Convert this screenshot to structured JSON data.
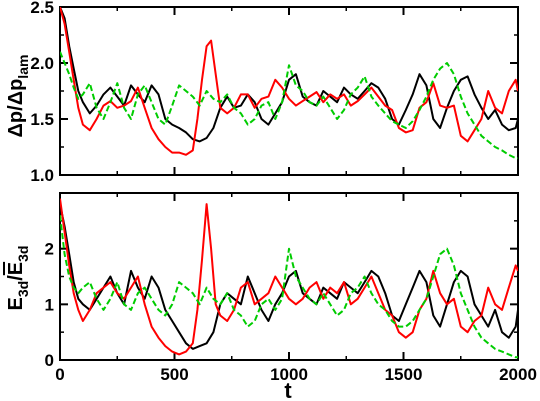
{
  "chart_data": [
    {
      "type": "line",
      "ylabel": "Δp/Δp_lam",
      "ylabel_main": "Δp/Δp",
      "ylabel_sub": "lam",
      "xlim": [
        0,
        2000
      ],
      "ylim": [
        1.0,
        2.5
      ],
      "x_ticks": [
        0,
        500,
        1000,
        1500,
        2000
      ],
      "y_ticks": [
        1.0,
        1.5,
        2.0,
        2.5
      ],
      "y_tick_labels": [
        "1.0",
        "1.5",
        "2.0",
        "2.5"
      ],
      "grid": false,
      "series": [
        {
          "color": "#000000",
          "dash": "solid",
          "x": [
            0,
            20,
            40,
            60,
            80,
            100,
            130,
            160,
            190,
            220,
            250,
            280,
            310,
            340,
            370,
            400,
            430,
            460,
            490,
            520,
            550,
            580,
            610,
            640,
            670,
            700,
            730,
            760,
            790,
            820,
            850,
            880,
            910,
            940,
            970,
            1000,
            1030,
            1060,
            1090,
            1120,
            1150,
            1180,
            1210,
            1240,
            1270,
            1300,
            1330,
            1360,
            1390,
            1420,
            1450,
            1480,
            1510,
            1540,
            1570,
            1600,
            1630,
            1660,
            1690,
            1720,
            1750,
            1780,
            1810,
            1840,
            1870,
            1900,
            1930,
            1960,
            1990,
            2000
          ],
          "y": [
            2.5,
            2.4,
            2.15,
            1.95,
            1.75,
            1.65,
            1.55,
            1.62,
            1.72,
            1.78,
            1.7,
            1.62,
            1.8,
            1.72,
            1.65,
            1.8,
            1.72,
            1.5,
            1.45,
            1.42,
            1.38,
            1.32,
            1.3,
            1.33,
            1.42,
            1.6,
            1.7,
            1.6,
            1.62,
            1.72,
            1.65,
            1.5,
            1.45,
            1.55,
            1.65,
            1.85,
            1.9,
            1.7,
            1.65,
            1.62,
            1.75,
            1.7,
            1.65,
            1.78,
            1.72,
            1.68,
            1.75,
            1.82,
            1.78,
            1.68,
            1.5,
            1.45,
            1.58,
            1.72,
            1.9,
            1.8,
            1.5,
            1.42,
            1.6,
            1.75,
            1.85,
            1.88,
            1.72,
            1.6,
            1.5,
            1.58,
            1.45,
            1.4,
            1.42,
            1.5
          ]
        },
        {
          "color": "#ff0000",
          "dash": "solid",
          "x": [
            0,
            20,
            40,
            60,
            80,
            100,
            130,
            160,
            190,
            220,
            250,
            280,
            310,
            340,
            370,
            400,
            430,
            460,
            490,
            520,
            550,
            580,
            600,
            620,
            640,
            660,
            680,
            700,
            730,
            760,
            790,
            820,
            850,
            880,
            910,
            940,
            970,
            1000,
            1030,
            1060,
            1090,
            1120,
            1150,
            1180,
            1210,
            1240,
            1270,
            1300,
            1330,
            1360,
            1390,
            1420,
            1450,
            1480,
            1510,
            1540,
            1570,
            1600,
            1630,
            1660,
            1690,
            1720,
            1750,
            1780,
            1810,
            1840,
            1870,
            1900,
            1930,
            1960,
            1990,
            2000
          ],
          "y": [
            2.5,
            2.35,
            2.1,
            1.85,
            1.6,
            1.45,
            1.4,
            1.5,
            1.62,
            1.66,
            1.6,
            1.62,
            1.66,
            1.78,
            1.6,
            1.42,
            1.32,
            1.25,
            1.2,
            1.2,
            1.18,
            1.22,
            1.5,
            1.85,
            2.15,
            2.2,
            1.9,
            1.6,
            1.55,
            1.6,
            1.72,
            1.72,
            1.6,
            1.68,
            1.7,
            1.85,
            1.78,
            1.68,
            1.62,
            1.66,
            1.7,
            1.74,
            1.65,
            1.72,
            1.68,
            1.72,
            1.62,
            1.66,
            1.72,
            1.78,
            1.7,
            1.62,
            1.58,
            1.42,
            1.38,
            1.4,
            1.6,
            1.65,
            1.82,
            1.62,
            1.6,
            1.62,
            1.35,
            1.3,
            1.4,
            1.5,
            1.75,
            1.6,
            1.55,
            1.75,
            1.85,
            1.75
          ]
        },
        {
          "color": "#00cc00",
          "dash": "dashed",
          "x": [
            0,
            20,
            40,
            60,
            80,
            100,
            130,
            160,
            190,
            220,
            250,
            280,
            310,
            340,
            370,
            400,
            430,
            460,
            490,
            520,
            550,
            580,
            610,
            640,
            670,
            700,
            730,
            760,
            790,
            820,
            850,
            880,
            910,
            940,
            970,
            1000,
            1030,
            1060,
            1090,
            1120,
            1150,
            1180,
            1210,
            1240,
            1270,
            1300,
            1330,
            1360,
            1390,
            1420,
            1450,
            1480,
            1510,
            1540,
            1570,
            1600,
            1630,
            1660,
            1690,
            1720,
            1750,
            1780,
            1810,
            1840,
            1870,
            1900,
            1930,
            1960,
            1990,
            2000
          ],
          "y": [
            2.1,
            2.0,
            1.9,
            1.78,
            1.68,
            1.72,
            1.82,
            1.6,
            1.5,
            1.65,
            1.82,
            1.6,
            1.5,
            1.72,
            1.8,
            1.65,
            1.5,
            1.45,
            1.62,
            1.8,
            1.75,
            1.7,
            1.62,
            1.75,
            1.68,
            1.65,
            1.72,
            1.6,
            1.55,
            1.45,
            1.5,
            1.62,
            1.65,
            1.5,
            1.65,
            1.98,
            1.8,
            1.75,
            1.65,
            1.62,
            1.7,
            1.6,
            1.5,
            1.58,
            1.72,
            1.78,
            1.88,
            1.7,
            1.62,
            1.55,
            1.48,
            1.45,
            1.42,
            1.48,
            1.58,
            1.7,
            1.85,
            1.95,
            2.0,
            1.9,
            1.7,
            1.55,
            1.45,
            1.35,
            1.3,
            1.25,
            1.22,
            1.18,
            1.15,
            1.15
          ]
        }
      ]
    },
    {
      "type": "line",
      "xlabel": "t",
      "ylabel": "E_3d/Ē_3d",
      "ylabel_main": "E",
      "ylabel_sub": "3d",
      "ylabel_den": "E",
      "ylabel_den_sub": "3d",
      "xlim": [
        0,
        2000
      ],
      "ylim": [
        0,
        3
      ],
      "x_ticks": [
        0,
        500,
        1000,
        1500,
        2000
      ],
      "x_tick_labels": [
        "0",
        "500",
        "1000",
        "1500",
        "2000"
      ],
      "y_ticks": [
        0,
        1,
        2
      ],
      "y_tick_labels": [
        "0",
        "1",
        "2"
      ],
      "grid": false,
      "series": [
        {
          "color": "#000000",
          "dash": "solid",
          "x": [
            0,
            20,
            40,
            60,
            80,
            100,
            130,
            160,
            190,
            220,
            250,
            280,
            310,
            340,
            370,
            400,
            430,
            460,
            490,
            520,
            550,
            580,
            610,
            640,
            670,
            700,
            730,
            760,
            790,
            820,
            850,
            880,
            910,
            940,
            970,
            1000,
            1030,
            1060,
            1090,
            1120,
            1150,
            1180,
            1210,
            1240,
            1270,
            1300,
            1330,
            1360,
            1390,
            1420,
            1450,
            1480,
            1510,
            1540,
            1570,
            1600,
            1630,
            1660,
            1690,
            1720,
            1750,
            1780,
            1810,
            1840,
            1870,
            1900,
            1930,
            1960,
            1990,
            2000
          ],
          "y": [
            2.8,
            2.4,
            1.9,
            1.4,
            1.1,
            1.0,
            0.9,
            1.1,
            1.3,
            1.5,
            1.2,
            1.0,
            1.6,
            1.3,
            1.1,
            1.5,
            1.3,
            0.9,
            0.7,
            0.5,
            0.3,
            0.2,
            0.25,
            0.3,
            0.5,
            1.0,
            1.2,
            1.1,
            1.0,
            1.5,
            1.2,
            0.9,
            0.7,
            1.0,
            1.2,
            1.5,
            1.6,
            1.2,
            1.1,
            1.0,
            1.3,
            1.2,
            1.1,
            1.4,
            1.3,
            1.2,
            1.4,
            1.6,
            1.5,
            1.2,
            0.8,
            0.7,
            1.0,
            1.3,
            1.6,
            1.4,
            0.8,
            0.6,
            1.0,
            1.4,
            1.6,
            1.5,
            1.0,
            0.8,
            0.6,
            0.9,
            0.5,
            0.4,
            0.6,
            0.9
          ]
        },
        {
          "color": "#ff0000",
          "dash": "solid",
          "x": [
            0,
            20,
            40,
            60,
            80,
            100,
            130,
            160,
            190,
            220,
            250,
            280,
            310,
            340,
            370,
            400,
            430,
            460,
            490,
            520,
            550,
            580,
            600,
            620,
            640,
            660,
            680,
            700,
            730,
            760,
            790,
            820,
            850,
            880,
            910,
            940,
            970,
            1000,
            1030,
            1060,
            1090,
            1120,
            1150,
            1180,
            1210,
            1240,
            1270,
            1300,
            1330,
            1360,
            1390,
            1420,
            1450,
            1480,
            1510,
            1540,
            1570,
            1600,
            1630,
            1660,
            1690,
            1720,
            1750,
            1780,
            1810,
            1840,
            1870,
            1900,
            1930,
            1960,
            1990,
            2000
          ],
          "y": [
            2.9,
            2.3,
            1.7,
            1.2,
            0.9,
            0.7,
            0.9,
            1.2,
            1.3,
            1.4,
            1.2,
            1.1,
            1.3,
            1.5,
            1.0,
            0.6,
            0.4,
            0.25,
            0.15,
            0.1,
            0.15,
            0.3,
            0.9,
            1.8,
            2.8,
            2.0,
            1.0,
            0.8,
            0.7,
            0.9,
            1.3,
            1.4,
            1.0,
            1.1,
            1.2,
            1.5,
            1.3,
            1.1,
            1.0,
            1.1,
            1.3,
            1.4,
            1.1,
            1.3,
            1.2,
            1.4,
            1.0,
            1.1,
            1.3,
            1.5,
            1.2,
            0.9,
            0.8,
            0.5,
            0.4,
            0.5,
            0.9,
            1.1,
            1.6,
            1.2,
            1.0,
            1.1,
            0.6,
            0.5,
            0.7,
            0.8,
            1.3,
            1.0,
            0.9,
            1.3,
            1.7,
            1.6
          ]
        },
        {
          "color": "#00cc00",
          "dash": "dashed",
          "x": [
            0,
            20,
            40,
            60,
            80,
            100,
            130,
            160,
            190,
            220,
            250,
            280,
            310,
            340,
            370,
            400,
            430,
            460,
            490,
            520,
            550,
            580,
            610,
            640,
            670,
            700,
            730,
            760,
            790,
            820,
            850,
            880,
            910,
            940,
            970,
            1000,
            1030,
            1060,
            1090,
            1120,
            1150,
            1180,
            1210,
            1240,
            1270,
            1300,
            1330,
            1360,
            1390,
            1420,
            1450,
            1480,
            1510,
            1540,
            1570,
            1600,
            1630,
            1660,
            1690,
            1720,
            1750,
            1780,
            1810,
            1840,
            1870,
            1900,
            1930,
            1960,
            1990,
            2000
          ],
          "y": [
            2.6,
            1.9,
            1.5,
            1.3,
            1.2,
            1.3,
            1.4,
            1.1,
            0.9,
            1.1,
            1.4,
            1.0,
            0.9,
            1.2,
            1.3,
            1.1,
            0.9,
            0.8,
            1.0,
            1.4,
            1.3,
            1.2,
            1.0,
            1.3,
            1.1,
            1.0,
            1.2,
            0.9,
            0.8,
            0.6,
            0.7,
            1.0,
            1.1,
            0.9,
            1.1,
            2.0,
            1.5,
            1.3,
            1.1,
            1.0,
            1.2,
            1.0,
            0.8,
            0.9,
            1.2,
            1.3,
            1.5,
            1.2,
            1.0,
            0.9,
            0.7,
            0.6,
            0.6,
            0.7,
            0.9,
            1.1,
            1.5,
            1.9,
            2.0,
            1.7,
            1.2,
            0.9,
            0.6,
            0.4,
            0.3,
            0.2,
            0.15,
            0.1,
            0.05,
            0.05
          ]
        }
      ]
    }
  ]
}
